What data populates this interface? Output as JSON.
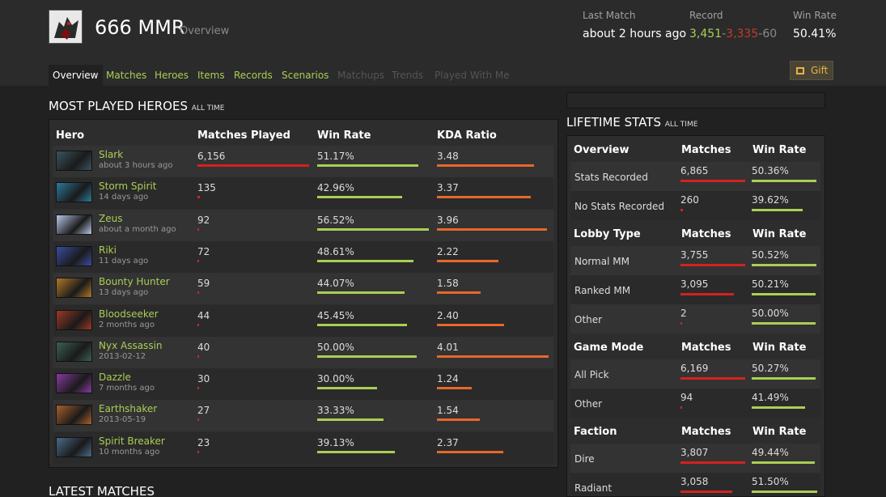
{
  "header": {
    "title": "666 MMR",
    "subtitle": "Overview",
    "last_match": {
      "label": "Last Match",
      "value": "about 2 hours ago"
    },
    "record": {
      "label": "Record",
      "wins": "3,451",
      "losses": "3,335",
      "abandons": "60",
      "separator": "-"
    },
    "win_rate": {
      "label": "Win Rate",
      "value": "50.41%"
    },
    "gift_label": "Gift"
  },
  "tabs": [
    {
      "label": "Overview",
      "state": "active"
    },
    {
      "label": "Matches",
      "state": "link"
    },
    {
      "label": "Heroes",
      "state": "link"
    },
    {
      "label": "Items",
      "state": "link"
    },
    {
      "label": "Records",
      "state": "link"
    },
    {
      "label": "Scenarios",
      "state": "link"
    },
    {
      "label": "Matchups",
      "state": "disabled"
    },
    {
      "label": "Trends",
      "state": "disabled"
    },
    {
      "label": "Played With Me",
      "state": "disabled"
    }
  ],
  "most_played": {
    "title": "MOST PLAYED HEROES",
    "qualifier": "ALL TIME",
    "columns": [
      "Hero",
      "Matches Played",
      "Win Rate",
      "KDA Ratio"
    ],
    "rows": [
      {
        "hero": "Slark",
        "last": "about 3 hours ago",
        "matches": "6,156",
        "matches_frac": 1.0,
        "win_rate": "51.17%",
        "win_frac": 0.5117,
        "kda": "3.48",
        "kda_frac": 0.868,
        "color": "#3a5560"
      },
      {
        "hero": "Storm Spirit",
        "last": "14 days ago",
        "matches": "135",
        "matches_frac": 0.022,
        "win_rate": "42.96%",
        "win_frac": 0.4296,
        "kda": "3.37",
        "kda_frac": 0.84,
        "color": "#2a7a9a"
      },
      {
        "hero": "Zeus",
        "last": "about a month ago",
        "matches": "92",
        "matches_frac": 0.015,
        "win_rate": "56.52%",
        "win_frac": 0.5652,
        "kda": "3.96",
        "kda_frac": 0.988,
        "color": "#b8c8e8"
      },
      {
        "hero": "Riki",
        "last": "11 days ago",
        "matches": "72",
        "matches_frac": 0.012,
        "win_rate": "48.61%",
        "win_frac": 0.4861,
        "kda": "2.22",
        "kda_frac": 0.553,
        "color": "#3a4ca0"
      },
      {
        "hero": "Bounty Hunter",
        "last": "13 days ago",
        "matches": "59",
        "matches_frac": 0.01,
        "win_rate": "44.07%",
        "win_frac": 0.4407,
        "kda": "1.58",
        "kda_frac": 0.394,
        "color": "#b0782a"
      },
      {
        "hero": "Bloodseeker",
        "last": "2 months ago",
        "matches": "44",
        "matches_frac": 0.007,
        "win_rate": "45.45%",
        "win_frac": 0.4545,
        "kda": "2.40",
        "kda_frac": 0.598,
        "color": "#9a3a24"
      },
      {
        "hero": "Nyx Assassin",
        "last": "2013-02-12",
        "matches": "40",
        "matches_frac": 0.0065,
        "win_rate": "50.00%",
        "win_frac": 0.5,
        "kda": "4.01",
        "kda_frac": 1.0,
        "color": "#3d6050"
      },
      {
        "hero": "Dazzle",
        "last": "7 months ago",
        "matches": "30",
        "matches_frac": 0.005,
        "win_rate": "30.00%",
        "win_frac": 0.3,
        "kda": "1.24",
        "kda_frac": 0.309,
        "color": "#8a3aa0"
      },
      {
        "hero": "Earthshaker",
        "last": "2013-05-19",
        "matches": "27",
        "matches_frac": 0.0044,
        "win_rate": "33.33%",
        "win_frac": 0.3333,
        "kda": "1.54",
        "kda_frac": 0.384,
        "color": "#a8602a"
      },
      {
        "hero": "Spirit Breaker",
        "last": "10 months ago",
        "matches": "23",
        "matches_frac": 0.0037,
        "win_rate": "39.13%",
        "win_frac": 0.3913,
        "kda": "2.37",
        "kda_frac": 0.591,
        "color": "#4a6a88"
      }
    ]
  },
  "lifetime": {
    "title": "LIFETIME STATS",
    "qualifier": "ALL TIME",
    "sections": [
      {
        "heading": "Overview",
        "col_matches": "Matches",
        "col_winrate": "Win Rate",
        "rows": [
          {
            "label": "Stats Recorded",
            "matches": "6,865",
            "matches_frac": 1.0,
            "win_rate": "50.36%",
            "win_frac": 0.5036
          },
          {
            "label": "No Stats Recorded",
            "matches": "260",
            "matches_frac": 0.038,
            "win_rate": "39.62%",
            "win_frac": 0.3962
          }
        ]
      },
      {
        "heading": "Lobby Type",
        "col_matches": "Matches",
        "col_winrate": "Win Rate",
        "rows": [
          {
            "label": "Normal MM",
            "matches": "3,755",
            "matches_frac": 1.0,
            "win_rate": "50.52%",
            "win_frac": 0.5052
          },
          {
            "label": "Ranked MM",
            "matches": "3,095",
            "matches_frac": 0.824,
            "win_rate": "50.21%",
            "win_frac": 0.5021
          },
          {
            "label": "Other",
            "matches": "2",
            "matches_frac": 0.0005,
            "win_rate": "50.00%",
            "win_frac": 0.5
          }
        ]
      },
      {
        "heading": "Game Mode",
        "col_matches": "Matches",
        "col_winrate": "Win Rate",
        "rows": [
          {
            "label": "All Pick",
            "matches": "6,169",
            "matches_frac": 1.0,
            "win_rate": "50.27%",
            "win_frac": 0.5027
          },
          {
            "label": "Other",
            "matches": "94",
            "matches_frac": 0.015,
            "win_rate": "41.49%",
            "win_frac": 0.4149
          }
        ]
      },
      {
        "heading": "Faction",
        "col_matches": "Matches",
        "col_winrate": "Win Rate",
        "rows": [
          {
            "label": "Dire",
            "matches": "3,807",
            "matches_frac": 1.0,
            "win_rate": "49.44%",
            "win_frac": 0.4944
          },
          {
            "label": "Radiant",
            "matches": "3,058",
            "matches_frac": 0.803,
            "win_rate": "51.50%",
            "win_frac": 0.515
          }
        ]
      }
    ]
  },
  "latest_matches": {
    "title": "LATEST MATCHES"
  }
}
